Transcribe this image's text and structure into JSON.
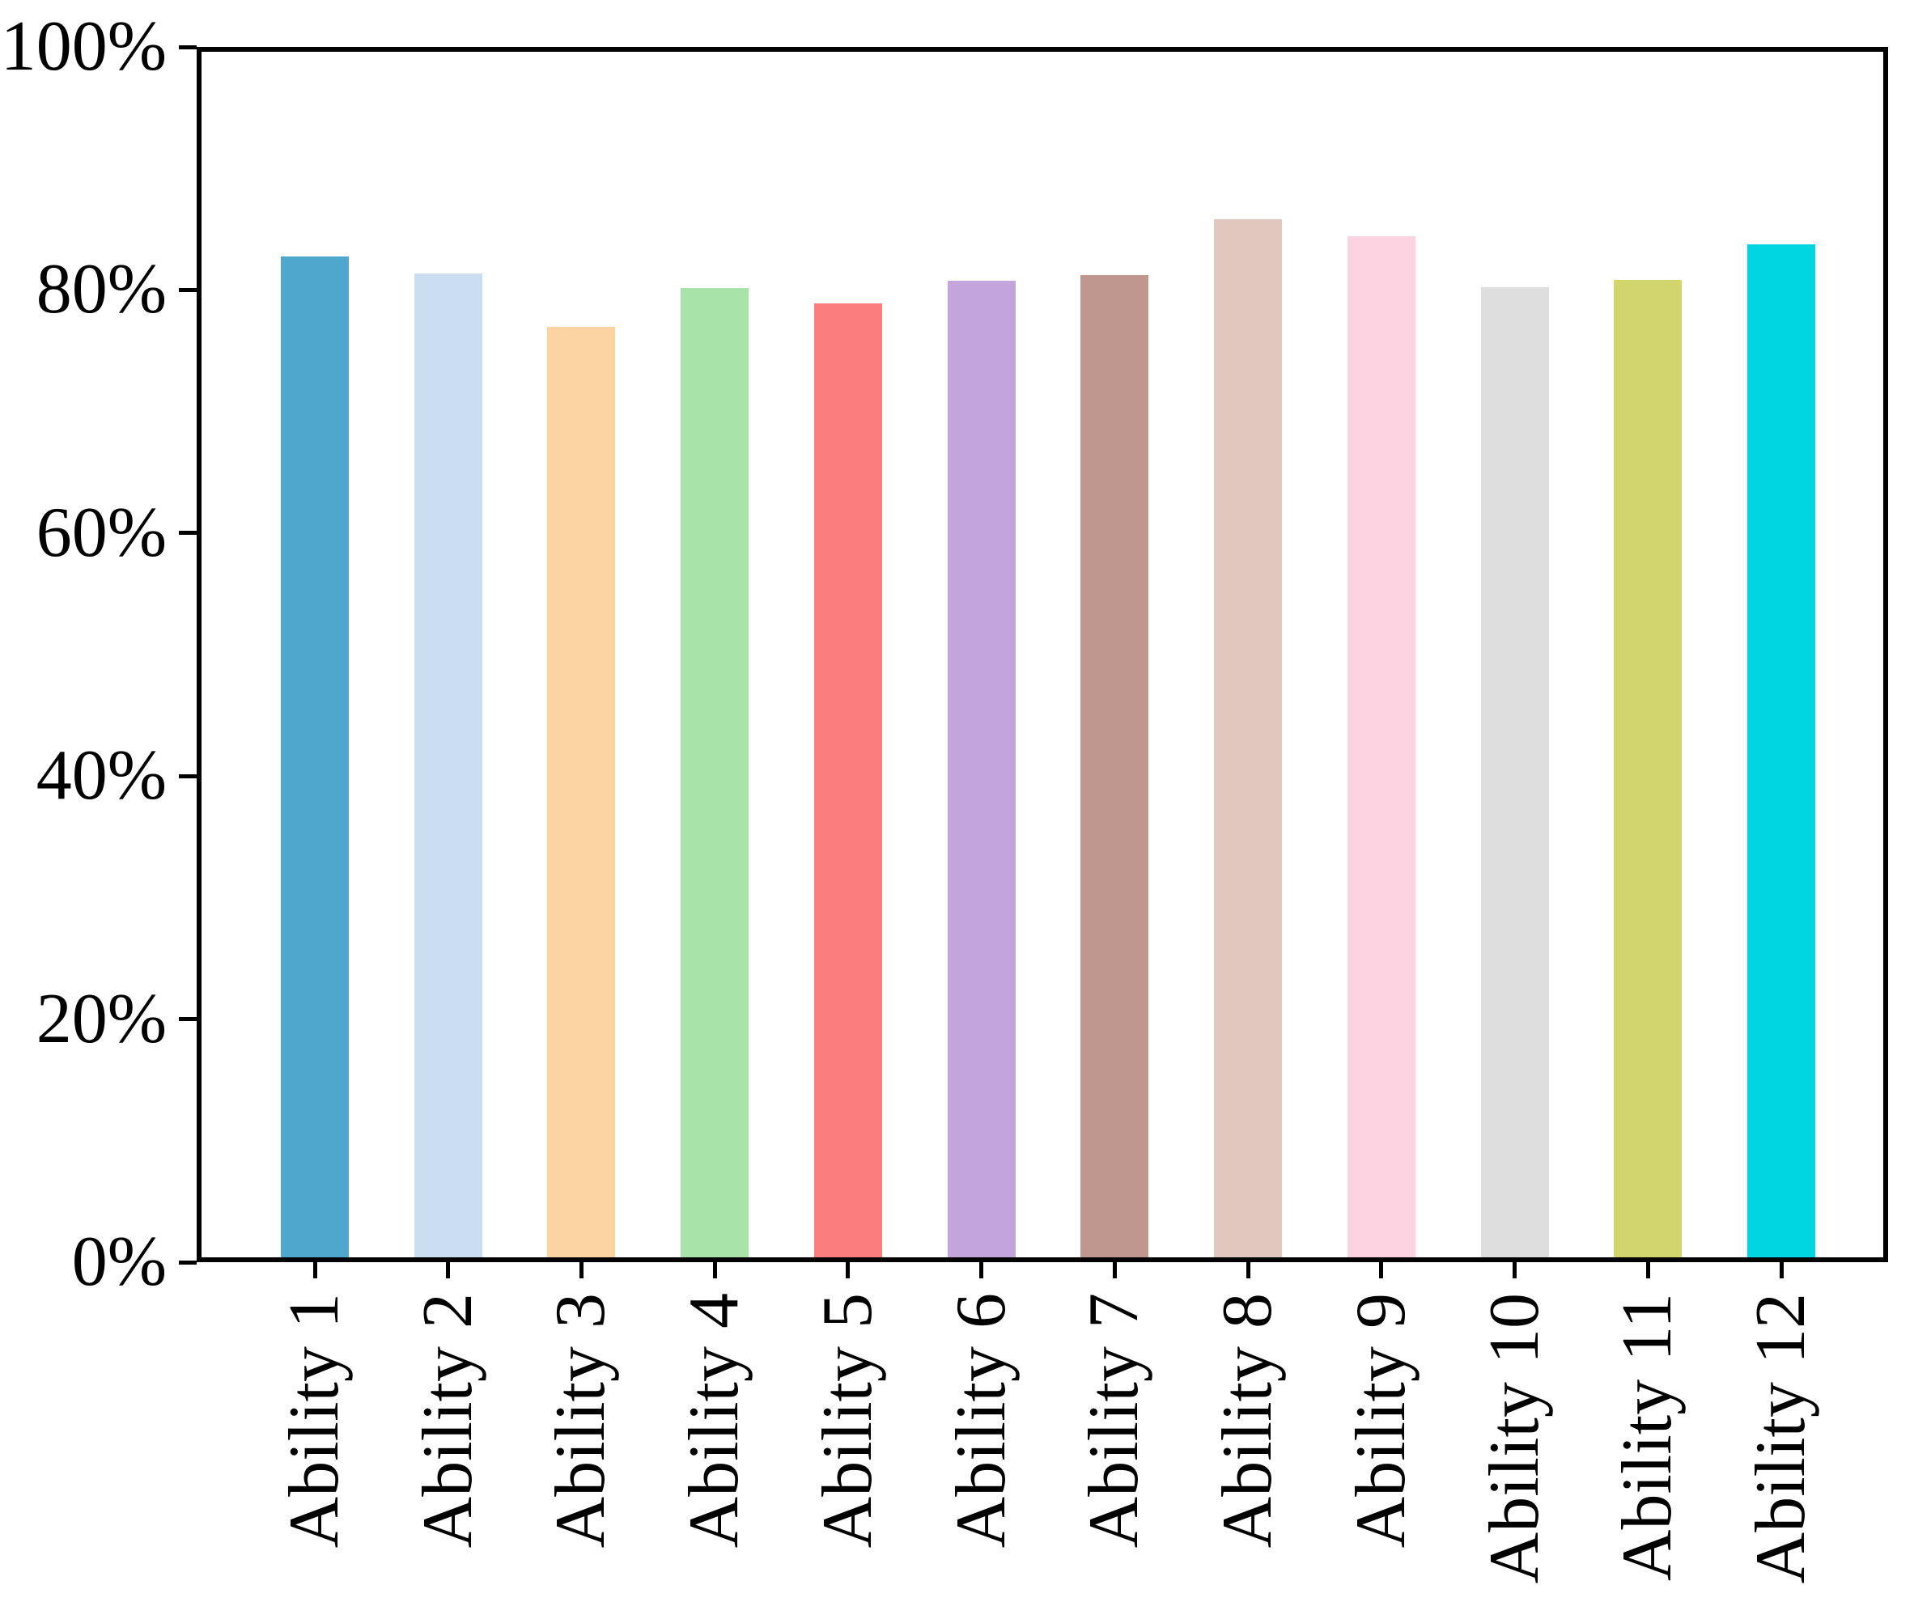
{
  "chart_data": {
    "type": "bar",
    "title": "",
    "xlabel": "",
    "ylabel": "",
    "categories": [
      "Ability 1",
      "Ability 2",
      "Ability 3",
      "Ability 4",
      "Ability 5",
      "Ability 6",
      "Ability 7",
      "Ability 8",
      "Ability 9",
      "Ability 10",
      "Ability 11",
      "Ability 12"
    ],
    "values": [
      83.0,
      81.6,
      77.2,
      80.4,
      79.1,
      81.0,
      81.5,
      86.1,
      84.7,
      80.5,
      81.1,
      84.0
    ],
    "unit": "%",
    "bar_colors": [
      "#4FA7CE",
      "#CBDDF0",
      "#FCD3A3",
      "#A8E4AA",
      "#FB7D7D",
      "#C3A4DC",
      "#C0978F",
      "#E2C7BE",
      "#FED3E1",
      "#DEDEDE",
      "#D2D46E",
      "#00D6E1"
    ],
    "ylim": [
      0,
      100
    ],
    "yticks": [
      {
        "value": 0,
        "label": "0%"
      },
      {
        "value": 20,
        "label": "20%"
      },
      {
        "value": 40,
        "label": "40%"
      },
      {
        "value": 60,
        "label": "60%"
      },
      {
        "value": 80,
        "label": "80%"
      },
      {
        "value": 100,
        "label": "100%"
      }
    ],
    "grid": false,
    "legend": false,
    "axis_color": "#000000",
    "background_color": "#ffffff"
  }
}
